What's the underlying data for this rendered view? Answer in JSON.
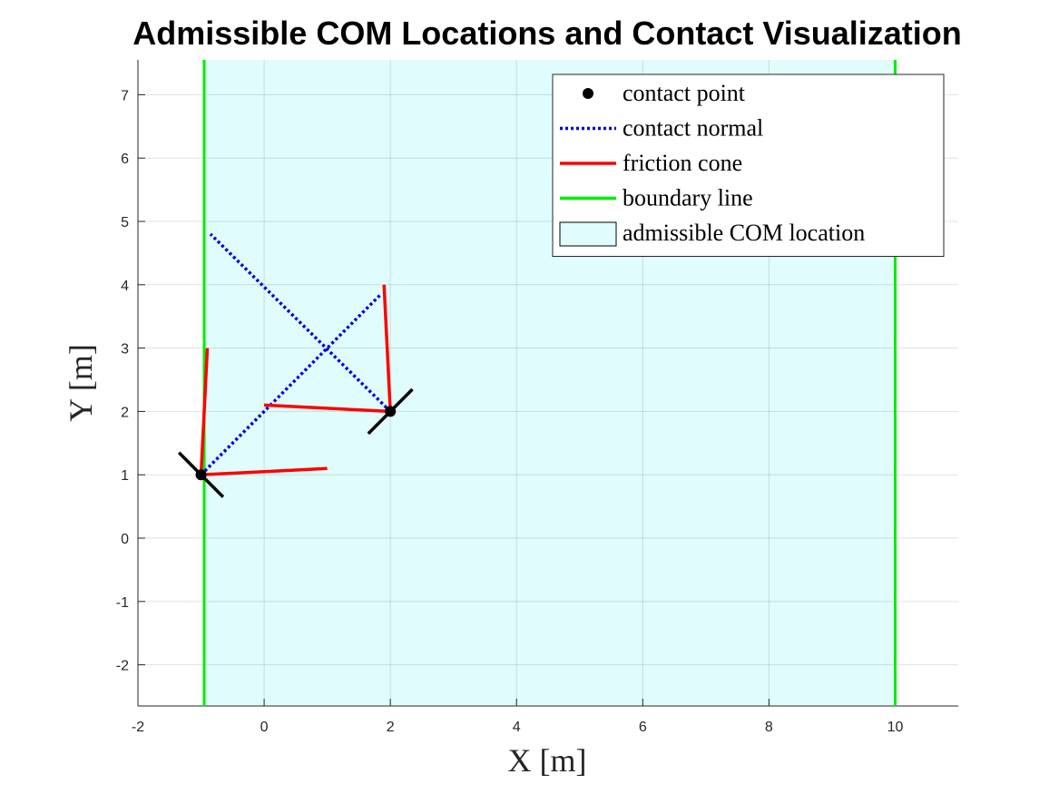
{
  "chart_data": {
    "type": "line",
    "title": "Admissible COM Locations and Contact Visualization",
    "xlabel": "X [m]",
    "ylabel": "Y [m]",
    "xlim": [
      -2,
      11
    ],
    "ylim": [
      -2.65,
      7.55
    ],
    "xticks": [
      -2,
      0,
      2,
      4,
      6,
      8,
      10
    ],
    "yticks": [
      -2,
      -1,
      0,
      1,
      2,
      3,
      4,
      5,
      6,
      7
    ],
    "grid": true,
    "legend_position": "top-right",
    "colors": {
      "admissible_fill": "#e0fcfc",
      "boundary": "#00ee00",
      "friction": "#ff0000",
      "normal": "#0000dd",
      "contact": "#000000"
    },
    "admissible_region": {
      "x": [
        -0.95,
        10
      ]
    },
    "boundary_lines": [
      {
        "x": -0.95
      },
      {
        "x": 10
      }
    ],
    "contact_points": [
      {
        "x": -1,
        "y": 1
      },
      {
        "x": 2,
        "y": 2
      }
    ],
    "contact_normals": [
      {
        "from": [
          -1,
          1
        ],
        "to": [
          1.85,
          3.85
        ]
      },
      {
        "from": [
          2,
          2
        ],
        "to": [
          -0.85,
          4.8
        ]
      }
    ],
    "friction_cone_edges": [
      {
        "from": [
          -1,
          1
        ],
        "to": [
          -0.9,
          3
        ]
      },
      {
        "from": [
          -1,
          1
        ],
        "to": [
          1,
          1.1
        ]
      },
      {
        "from": [
          2,
          2
        ],
        "to": [
          1.9,
          4
        ]
      },
      {
        "from": [
          2,
          2
        ],
        "to": [
          0,
          2.1
        ]
      }
    ],
    "contact_surfaces": [
      {
        "from": [
          -1.35,
          1.35
        ],
        "to": [
          -0.65,
          0.65
        ]
      },
      {
        "from": [
          1.65,
          1.65
        ],
        "to": [
          2.35,
          2.35
        ]
      }
    ],
    "legend": [
      {
        "label": "contact point",
        "kind": "marker",
        "color": "#000000"
      },
      {
        "label": "contact normal",
        "kind": "dotted",
        "color": "#0000dd"
      },
      {
        "label": "friction cone",
        "kind": "line",
        "color": "#ff0000"
      },
      {
        "label": "boundary line",
        "kind": "line",
        "color": "#00ee00"
      },
      {
        "label": "admissible COM location",
        "kind": "patch",
        "color": "#e0fcfc"
      }
    ]
  }
}
